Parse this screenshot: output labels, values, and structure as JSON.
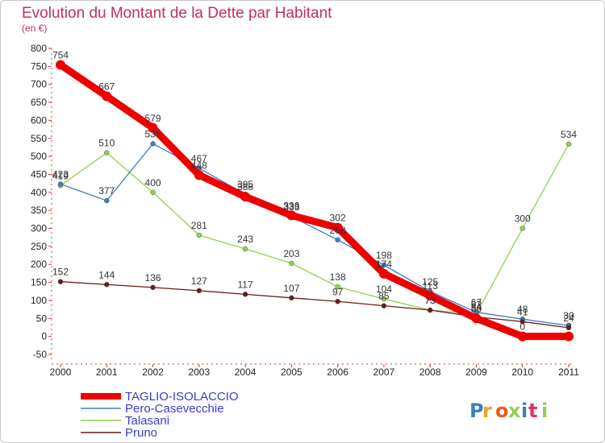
{
  "chart_data": {
    "type": "line",
    "title": "Evolution du Montant de la Dette par Habitant",
    "subtitle": "(en €)",
    "x": [
      "2000",
      "2001",
      "2002",
      "2003",
      "2004",
      "2005",
      "2006",
      "2007",
      "2008",
      "2009",
      "2010",
      "2011"
    ],
    "ylim": [
      -50,
      800
    ],
    "yticks": [
      -50,
      0,
      50,
      100,
      150,
      200,
      250,
      300,
      350,
      400,
      450,
      500,
      550,
      600,
      650,
      700,
      750,
      800
    ],
    "grid": false,
    "legend_position": "bottom-left",
    "series": [
      {
        "name": "Pero-Casevecchie",
        "color": "#3a7fc1",
        "values": [
          423,
          377,
          535,
          467,
          395,
          333,
          268,
          198,
          125,
          67,
          48,
          30
        ],
        "labels": [
          "423",
          "377",
          "535",
          "467",
          "395",
          "333",
          "268",
          "198",
          "125",
          "67",
          "48",
          "30"
        ]
      },
      {
        "name": "Talasani",
        "color": "#8fd14f",
        "values": [
          419,
          510,
          400,
          281,
          243,
          203,
          138,
          104,
          73,
          62,
          300,
          534
        ],
        "labels": [
          "419",
          "510",
          "400",
          "281",
          "243",
          "203",
          "138",
          "104",
          "73",
          "62",
          "300",
          "534"
        ]
      },
      {
        "name": "Pruno",
        "color": "#6b1a1a",
        "values": [
          152,
          144,
          136,
          127,
          117,
          107,
          97,
          85,
          73,
          54,
          41,
          24
        ],
        "labels": [
          "152",
          "144",
          "136",
          "127",
          "117",
          "107",
          "97",
          "85",
          "73",
          "54",
          "41",
          "24"
        ]
      },
      {
        "name": "TAGLIO-ISOLACCIO",
        "color": "#ee0000",
        "values": [
          754,
          667,
          579,
          448,
          388,
          336,
          302,
          174,
          113,
          50,
          0,
          0
        ],
        "labels": [
          "754",
          "667",
          "579",
          "448",
          "388",
          "336",
          "302",
          "174",
          "113",
          "50",
          "0",
          "0"
        ]
      }
    ]
  },
  "legend_order": [
    3,
    0,
    1,
    2
  ],
  "logo": {
    "text": "Proxiti",
    "letter_colors": [
      "#3a7fc1",
      "#f0a020",
      "#e85a1a",
      "#8fd14f",
      "#3a7fc1",
      "#e03060",
      "#8fd14f"
    ]
  }
}
